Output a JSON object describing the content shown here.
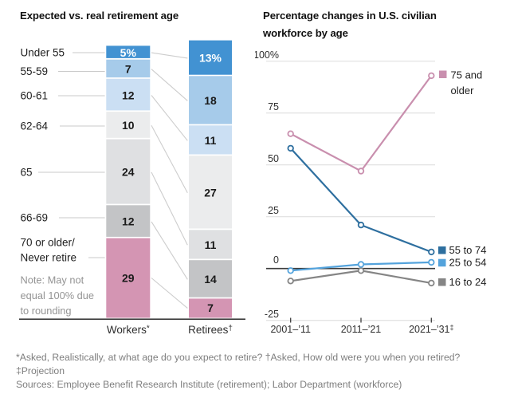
{
  "chart_data": [
    {
      "type": "bar",
      "subtype": "stacked-bar-comparison",
      "title": "Expected vs. real retirement age",
      "unit": "%",
      "categories": [
        "Under 55",
        "55-59",
        "60-61",
        "62-64",
        "65",
        "66-69",
        "70 or older/\nNever retire"
      ],
      "segment_colors": [
        "#4292d2",
        "#a6cbea",
        "#cbdff3",
        "#ebeced",
        "#dfe0e2",
        "#c3c4c6",
        "#d495b3"
      ],
      "columns": [
        {
          "label": "Workers*",
          "values": [
            5,
            7,
            12,
            10,
            24,
            12,
            29
          ]
        },
        {
          "label": "Retirees†",
          "values": [
            13,
            18,
            11,
            27,
            11,
            14,
            7
          ]
        }
      ],
      "note_lines": [
        "Note: May not",
        "equal 100% due",
        "to rounding"
      ],
      "value_label_first_suffix": "%"
    },
    {
      "type": "line",
      "title": "Percentage changes in U.S. civilian workforce by age",
      "title_lines": [
        "Percentage changes in U.S. civilian",
        "workforce by age"
      ],
      "x_categories": [
        "2001–’11",
        "2011–’21",
        "2021–’31‡"
      ],
      "yticks": [
        100,
        75,
        50,
        25,
        0,
        -25
      ],
      "ytick_labels": [
        "100%",
        "75",
        "50",
        "25",
        "0",
        "-25"
      ],
      "ylim": [
        -25,
        100
      ],
      "grid": true,
      "legend_position": "right",
      "series": [
        {
          "name": "75 and older",
          "color": "#c98fae",
          "values": [
            65,
            47,
            93
          ]
        },
        {
          "name": "55 to 74",
          "color": "#2e6f9f",
          "values": [
            58,
            21,
            8
          ]
        },
        {
          "name": "25 to 54",
          "color": "#54a3dc",
          "values": [
            -1,
            2,
            3
          ]
        },
        {
          "name": "16 to 24",
          "color": "#858585",
          "values": [
            -6,
            -1,
            -7
          ]
        }
      ]
    }
  ],
  "footnotes": [
    "*Asked, Realistically, at what age do you expect to retire?  †Asked, How old were you when you retired?",
    "‡Projection",
    "Sources: Employee Benefit Research Institute (retirement); Labor Department (workforce)"
  ]
}
